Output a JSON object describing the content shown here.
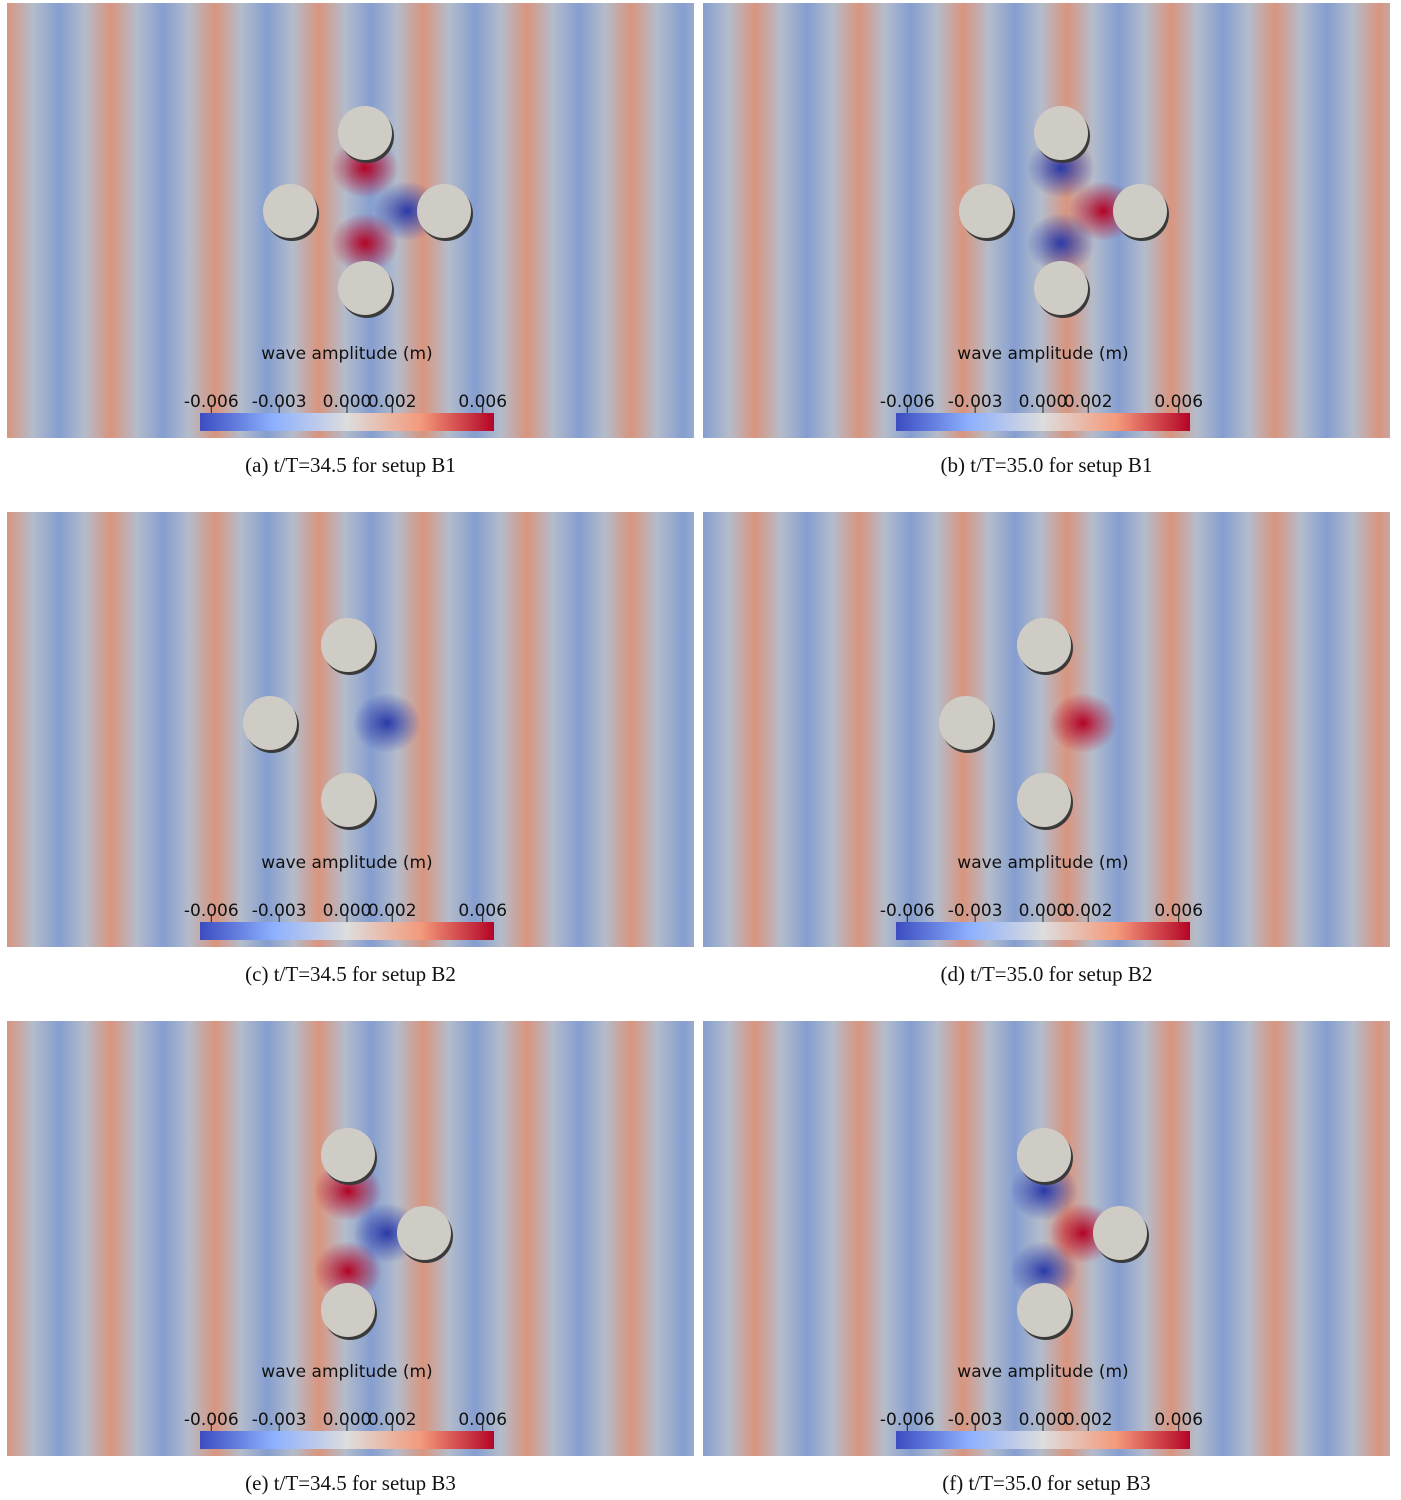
{
  "panels": [
    {
      "caption": "(a) t/T=34.5 for setup B1",
      "colorbar": {
        "title": "wave amplitude (m)",
        "lim": [
          -0.0065,
          0.0065
        ],
        "ticks": [
          -0.006,
          -0.003,
          {
            "value": 0,
            "label": "0.000"
          },
          0.002,
          0.006
        ]
      }
    },
    {
      "caption": "(b) t/T=35.0 for setup B1",
      "colorbar": {
        "title": "wave amplitude (m)",
        "lim": [
          -0.0065,
          0.0065
        ],
        "ticks": [
          -0.006,
          -0.003,
          {
            "value": 0,
            "label": "0.000"
          },
          0.002,
          0.006
        ]
      }
    },
    {
      "caption": "(c) t/T=34.5 for setup B2",
      "colorbar": {
        "title": "wave amplitude (m)",
        "lim": [
          -0.0065,
          0.0065
        ],
        "ticks": [
          -0.006,
          -0.003,
          {
            "value": 0,
            "label": "0.000"
          },
          0.002,
          0.006
        ]
      }
    },
    {
      "caption": "(d) t/T=35.0 for setup B2",
      "colorbar": {
        "title": "wave amplitude (m)",
        "lim": [
          -0.0065,
          0.0065
        ],
        "ticks": [
          -0.006,
          -0.003,
          {
            "value": 0,
            "label": "0.000"
          },
          0.002,
          0.006
        ]
      }
    },
    {
      "caption": "(e) t/T=34.5 for setup B3",
      "colorbar": {
        "title": "wave amplitude (m)",
        "lim": [
          -0.0065,
          0.0065
        ],
        "ticks": [
          -0.006,
          -0.003,
          {
            "value": 0,
            "label": "0.000"
          },
          0.002,
          0.006
        ]
      }
    },
    {
      "caption": "(f) t/T=35.0 for setup B3",
      "colorbar": {
        "title": "wave amplitude (m)",
        "lim": [
          -0.0065,
          0.0065
        ],
        "ticks": [
          -0.006,
          -0.003,
          {
            "value": 0,
            "label": "0.000"
          },
          0.002,
          0.006
        ]
      }
    }
  ]
}
